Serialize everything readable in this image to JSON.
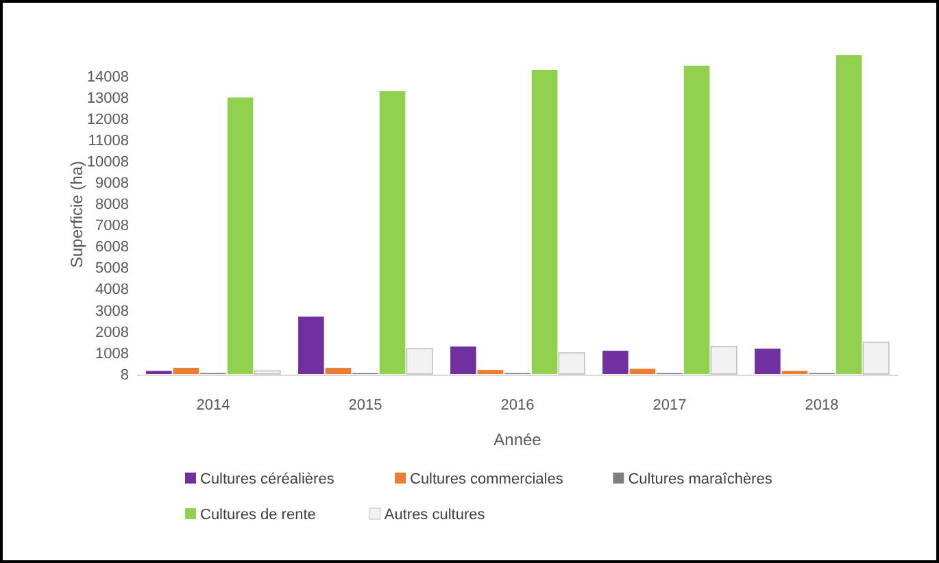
{
  "chart_data": {
    "type": "bar",
    "xlabel": "Année",
    "ylabel": "Superficie (ha)",
    "categories": [
      "2014",
      "2015",
      "2016",
      "2017",
      "2018"
    ],
    "series": [
      {
        "name": "Cultures céréalières",
        "color": "#7030a0",
        "values": [
          150,
          2700,
          1300,
          1100,
          1200
        ]
      },
      {
        "name": "Cultures commerciales",
        "color": "#ed7d31",
        "values": [
          300,
          300,
          200,
          250,
          150
        ]
      },
      {
        "name": "Cultures maraîchères",
        "color": "#7f7f7f",
        "values": [
          50,
          50,
          50,
          50,
          50
        ]
      },
      {
        "name": "Cultures de rente",
        "color": "#92d050",
        "values": [
          13000,
          13300,
          14300,
          14500,
          15000
        ]
      },
      {
        "name": "Autres cultures",
        "color": "#f2f2f2",
        "values": [
          150,
          1200,
          1000,
          1300,
          1500
        ]
      }
    ],
    "ylim": [
      8,
      15008
    ],
    "yticks": [
      8,
      1008,
      2008,
      3008,
      4008,
      5008,
      6008,
      7008,
      8008,
      9008,
      10008,
      11008,
      12008,
      13008,
      14008
    ],
    "grid": false,
    "legend": "bottom"
  }
}
